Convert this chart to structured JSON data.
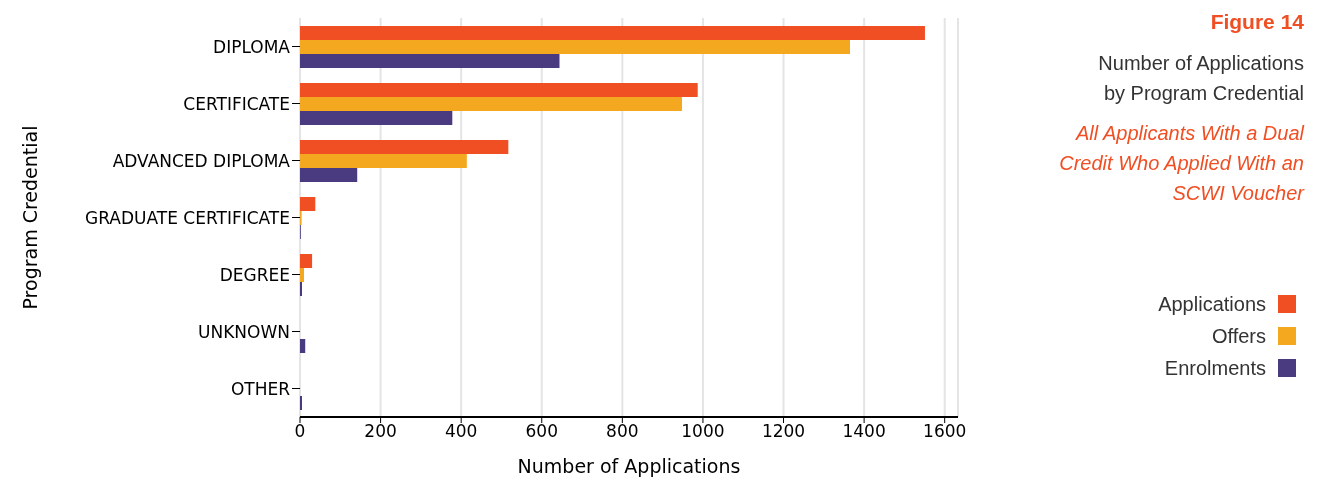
{
  "chart_data": {
    "type": "bar",
    "orientation": "horizontal",
    "title": "Figure 14",
    "subtitle": "Number of Applications by Program Credential",
    "annotations": [
      "All Applicants With a Dual Credit Who Applied With an SCWI Voucher"
    ],
    "xlabel": "Number of Applications",
    "ylabel": "Program Credential",
    "categories": [
      "DIPLOMA",
      "CERTIFICATE",
      "ADVANCED DIPLOMA",
      "GRADUATE CERTIFICATE",
      "DEGREE",
      "UNKNOWN",
      "OTHER"
    ],
    "series": [
      {
        "name": "Applications",
        "color": "#f04e23",
        "values": [
          1551,
          987,
          517,
          38,
          30,
          0,
          0
        ]
      },
      {
        "name": "Offers",
        "color": "#f3a81f",
        "values": [
          1365,
          948,
          414,
          4,
          10,
          0,
          0
        ]
      },
      {
        "name": "Enrolments",
        "color": "#4a3b80",
        "values": [
          644,
          378,
          142,
          2,
          5,
          13,
          5
        ]
      }
    ],
    "xlim": [
      0,
      1633
    ],
    "xticks": [
      0,
      200,
      400,
      600,
      800,
      1000,
      1200,
      1400,
      1600
    ],
    "grid": "x",
    "legend": "right"
  }
}
